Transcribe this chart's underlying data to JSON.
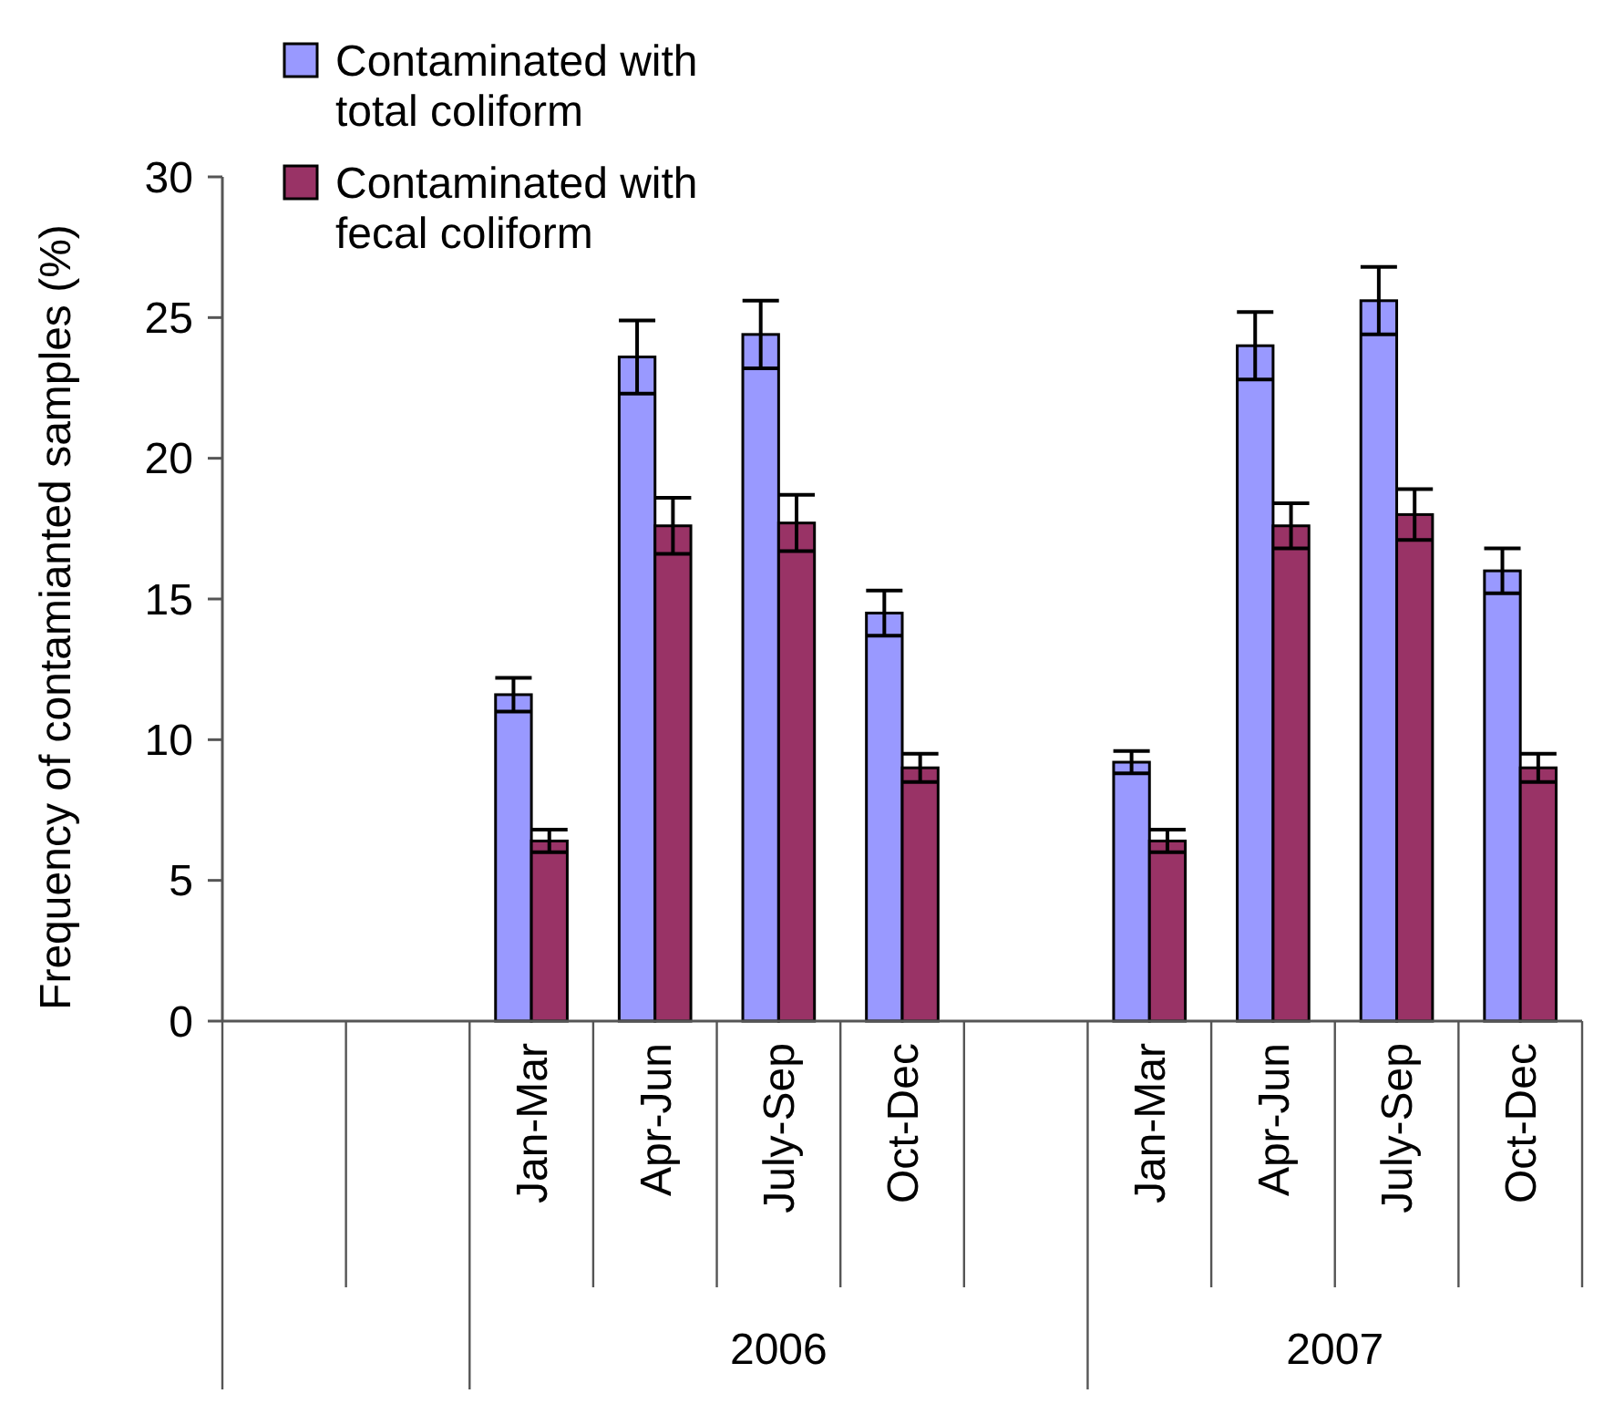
{
  "chart_data": {
    "type": "bar",
    "ylabel": "Frequency of contamianted samples (%)",
    "categories": [
      null,
      null,
      "Jan-Mar",
      "Apr-Jun",
      "July-Sep",
      "Oct-Dec",
      null,
      "Jan-Mar",
      "Apr-Jun",
      "July-Sep",
      "Oct-Dec"
    ],
    "series": [
      {
        "name": "Contaminated with total coliform",
        "color": "#9999ff",
        "values": [
          null,
          null,
          11.6,
          23.6,
          24.4,
          14.5,
          null,
          9.2,
          24.0,
          25.6,
          16.0
        ],
        "errors": [
          null,
          null,
          0.6,
          1.3,
          1.2,
          0.8,
          null,
          0.4,
          1.2,
          1.2,
          0.8
        ]
      },
      {
        "name": "Contaminated with fecal coliform",
        "color": "#993366",
        "values": [
          null,
          null,
          6.4,
          17.6,
          17.7,
          9.0,
          null,
          6.4,
          17.6,
          18.0,
          9.0
        ],
        "errors": [
          null,
          null,
          0.4,
          1.0,
          1.0,
          0.5,
          null,
          0.4,
          0.8,
          0.9,
          0.5
        ]
      }
    ],
    "annotations": [
      "2006",
      "2007"
    ],
    "ylim": [
      0,
      30
    ],
    "yticks": [
      0,
      5,
      10,
      15,
      20,
      25,
      30
    ],
    "legend": "top"
  }
}
